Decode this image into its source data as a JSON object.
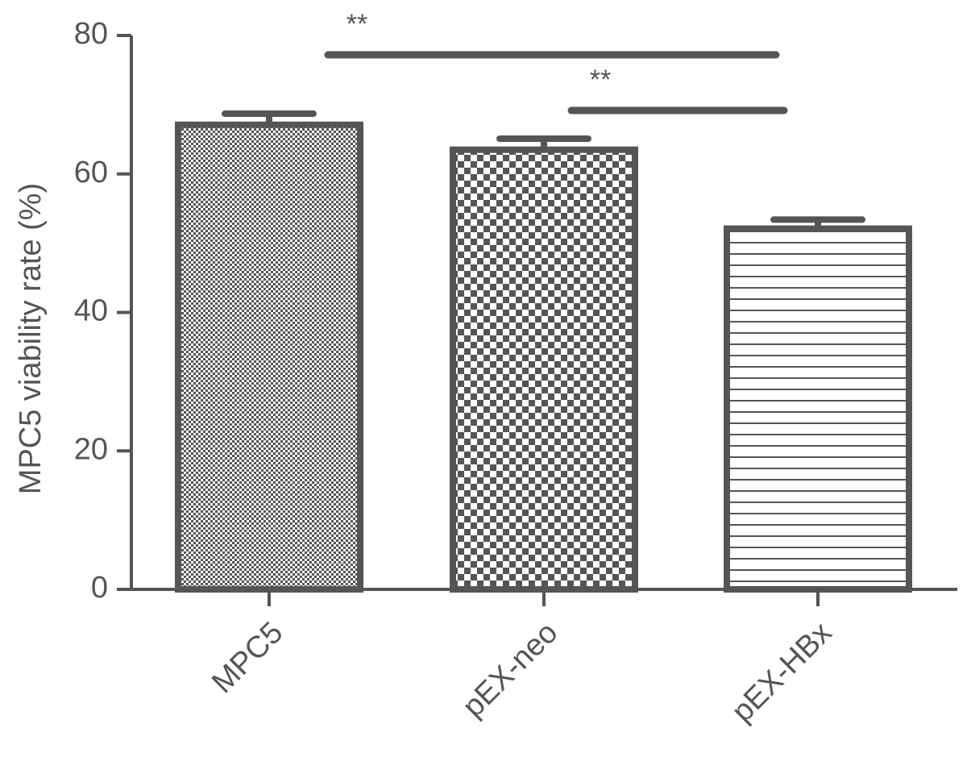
{
  "chart_data": {
    "type": "bar",
    "y_label": "MPC5 viability rate (%)",
    "categories": [
      "MPC5",
      "pEX-neo",
      "pEX-HBx"
    ],
    "values": [
      67.1,
      63.5,
      52.1
    ],
    "errors": [
      1.6,
      1.6,
      1.3
    ],
    "patterns": [
      "dots",
      "checker",
      "hlines"
    ],
    "color": "#555555",
    "ylim": [
      0,
      80
    ],
    "yticks": [
      0,
      20,
      40,
      60,
      80
    ],
    "annotations": [
      {
        "text": "**",
        "from": 0,
        "to": 2
      },
      {
        "text": "**",
        "from": 1,
        "to": 2
      }
    ]
  }
}
